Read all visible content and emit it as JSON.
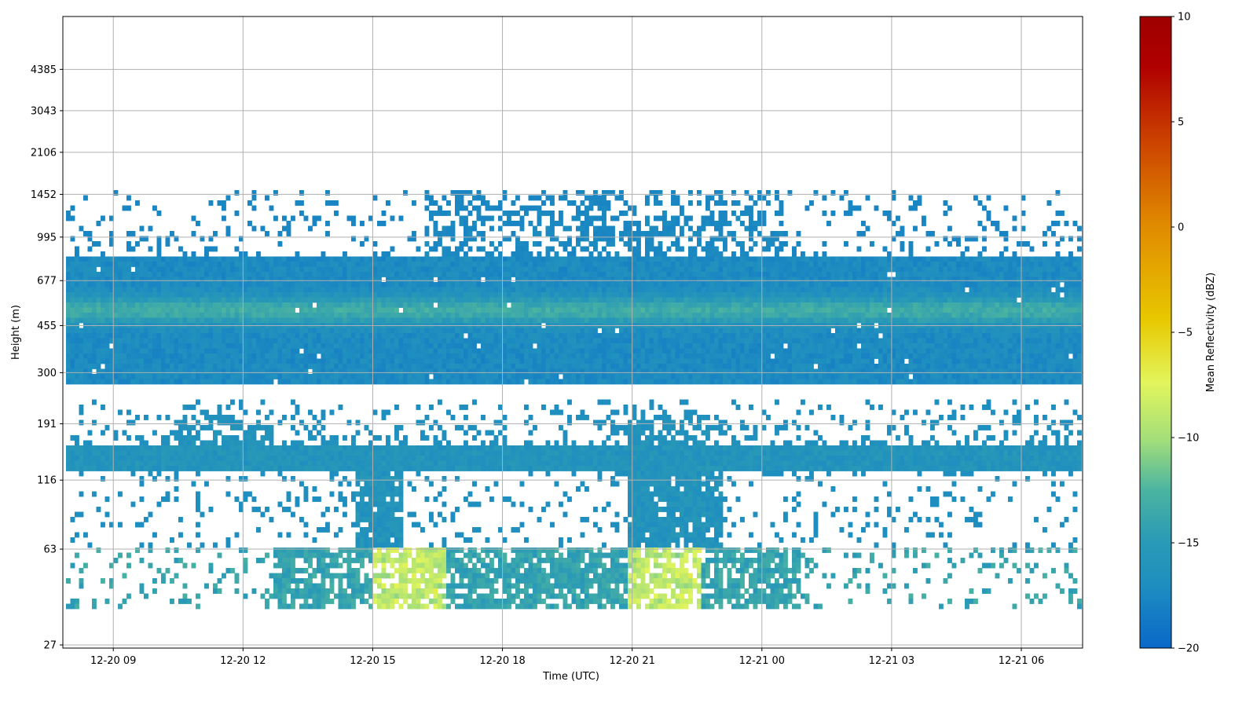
{
  "chart_data": {
    "type": "heatmap",
    "title": "",
    "xlabel": "Time (UTC)",
    "ylabel": "Height (m)",
    "x_ticks": [
      "12-20 09",
      "12-20 12",
      "12-20 15",
      "12-20 18",
      "12-20 21",
      "12-21 00",
      "12-21 03",
      "12-21 06"
    ],
    "x_range": [
      "12-20 07:50",
      "12-21 07:25"
    ],
    "y_ticks": [
      27,
      63,
      116,
      191,
      300,
      455,
      677,
      995,
      1452,
      2106,
      3043,
      4385
    ],
    "grid": true,
    "colorbar": {
      "label": "Mean Reflectivity (dBZ)",
      "min": -20,
      "max": 10,
      "ticks": [
        10,
        5,
        0,
        -5,
        -10,
        -15,
        -20
      ],
      "colors": [
        "#0a68c8",
        "#1e8ec0",
        "#2a9ab6",
        "#4bb4a0",
        "#a3de7a",
        "#e2f55c",
        "#e8c800",
        "#e08a00",
        "#cc4400",
        "#b00000",
        "#9e0000"
      ]
    },
    "layers": [
      {
        "name": "residual-cloud",
        "height_range": [
          820,
          1520
        ],
        "dbz": -17,
        "coverage": "sparse"
      },
      {
        "name": "main-cloud-layer",
        "height_range": [
          270,
          850
        ],
        "dbz": -16,
        "coverage": "solid",
        "bright_band_height": 520,
        "bright_band_dbz": -14
      },
      {
        "name": "lower-cloud-layer",
        "height_range": [
          128,
          160
        ],
        "dbz": -16,
        "coverage": "solid"
      },
      {
        "name": "fog-layer",
        "height_range": [
          38,
          65
        ],
        "dbz": -14,
        "coverage": "patchy",
        "peak_dbz": -9
      }
    ]
  }
}
